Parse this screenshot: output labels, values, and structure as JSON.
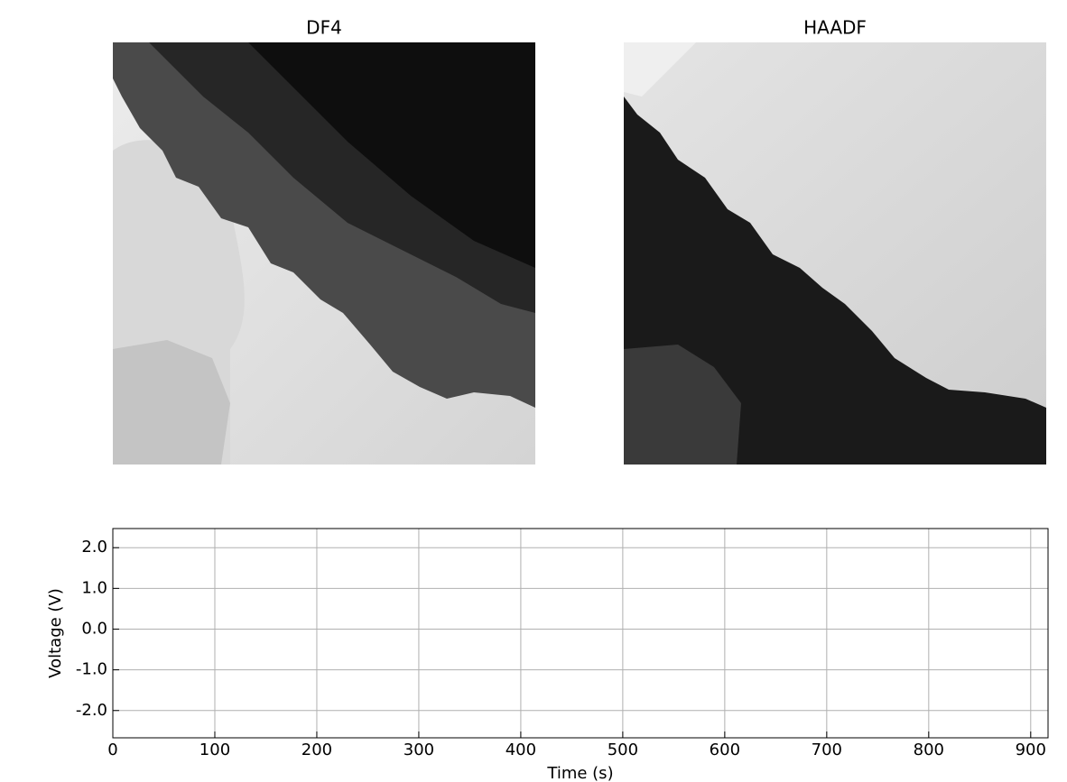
{
  "chart_data": [
    {
      "type": "image",
      "title": "DF4"
    },
    {
      "type": "image",
      "title": "HAADF"
    },
    {
      "type": "line",
      "xlabel": "Time (s)",
      "ylabel": "Voltage (V)",
      "xlim": [
        0,
        917
      ],
      "ylim": [
        -2.67,
        2.47
      ],
      "xticks": [
        0,
        100,
        200,
        300,
        400,
        500,
        600,
        700,
        800,
        900
      ],
      "yticks": [
        {
          "value": 2,
          "label": "2.0"
        },
        {
          "value": 1,
          "label": "1.0"
        },
        {
          "value": 0,
          "label": "0.0"
        },
        {
          "value": -1,
          "label": "-1.0"
        },
        {
          "value": -2,
          "label": "-2.0"
        }
      ],
      "grid": true
    }
  ]
}
